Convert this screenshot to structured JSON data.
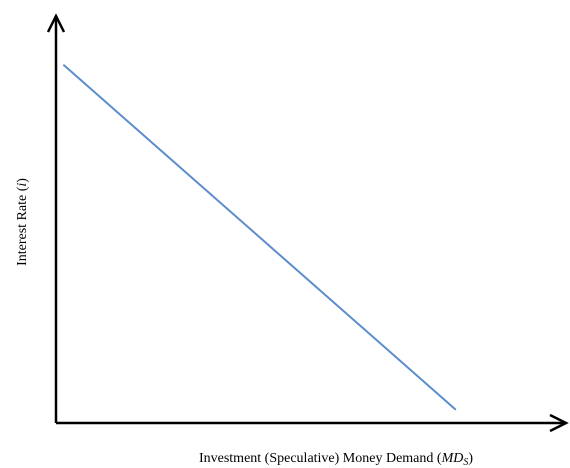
{
  "chart_data": {
    "type": "line",
    "title": "",
    "xlabel": {
      "text": "Investment (Speculative) Money Demand (",
      "italic_part": "MD",
      "subscript": "S",
      "suffix": ")"
    },
    "ylabel": {
      "text": "Interest Rate (",
      "italic_part": "i",
      "suffix": ")"
    },
    "x": [
      0.02,
      1.0
    ],
    "y": [
      1.0,
      0.0
    ],
    "xlim": [
      0,
      1.25
    ],
    "ylim": [
      -0.04,
      1.12
    ],
    "grid": false,
    "ticks": false,
    "series": [
      {
        "name": "",
        "color": "#5b8ccf"
      }
    ],
    "axis_color": "#000000"
  }
}
